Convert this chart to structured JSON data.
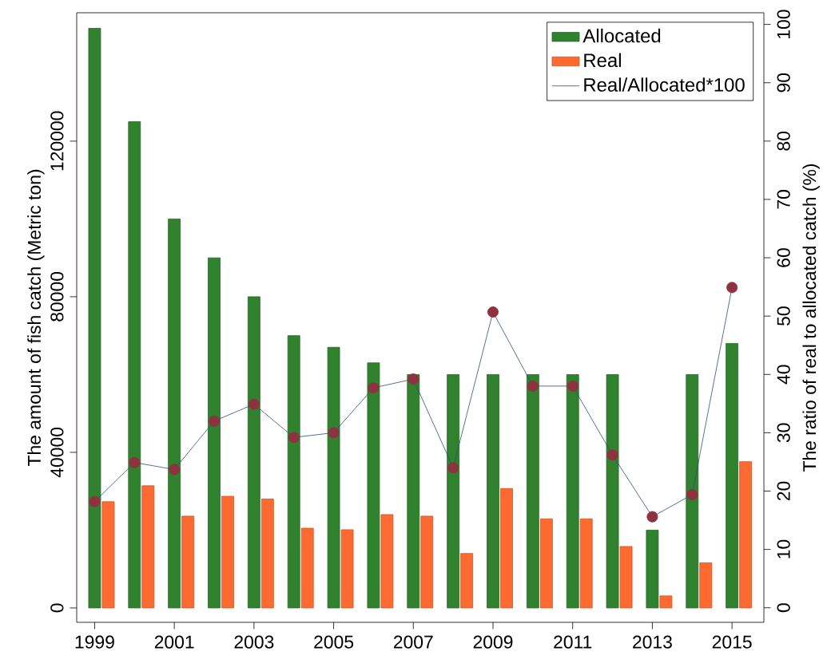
{
  "chart_data": {
    "type": "bar",
    "ylabel": "The amount of fish catch (Metric ton)",
    "y2label": "The ratio of real to allocated catch (%)",
    "x": [
      1999,
      2000,
      2001,
      2002,
      2003,
      2004,
      2005,
      2006,
      2007,
      2008,
      2009,
      2010,
      2011,
      2012,
      2013,
      2014,
      2015
    ],
    "xlim": [
      1998.55,
      2015.8
    ],
    "xticks": [
      1999,
      2001,
      2003,
      2005,
      2007,
      2009,
      2011,
      2013,
      2015
    ],
    "ylim": [
      -3700,
      153000
    ],
    "yticks": [
      0,
      40000,
      80000,
      120000
    ],
    "y2lim": [
      -2.5,
      102
    ],
    "y2ticks": [
      0,
      10,
      20,
      30,
      40,
      50,
      60,
      70,
      80,
      90,
      100
    ],
    "series": [
      {
        "name": "Allocated",
        "color": "#31822f",
        "values": [
          149000,
          125000,
          100000,
          90000,
          80000,
          70000,
          67000,
          63000,
          60000,
          60000,
          60000,
          60000,
          60000,
          60000,
          20000,
          60000,
          68000
        ]
      },
      {
        "name": "Real",
        "color": "#ff6a30",
        "values": [
          27300,
          31400,
          23600,
          28700,
          28000,
          20500,
          20100,
          24000,
          23600,
          14000,
          30700,
          22900,
          22900,
          15800,
          3100,
          11600,
          37600
        ]
      },
      {
        "name": "Real/Allocated*100",
        "type": "line",
        "axis": "y2",
        "marker": "circle",
        "color": "#2a4f7a",
        "values": [
          18.2,
          24.9,
          23.7,
          32,
          34.9,
          29.2,
          30,
          37.7,
          39.2,
          24,
          50.7,
          38,
          38,
          26.2,
          15.6,
          19.4,
          54.9
        ]
      }
    ],
    "legend": "top right",
    "grid": false
  }
}
